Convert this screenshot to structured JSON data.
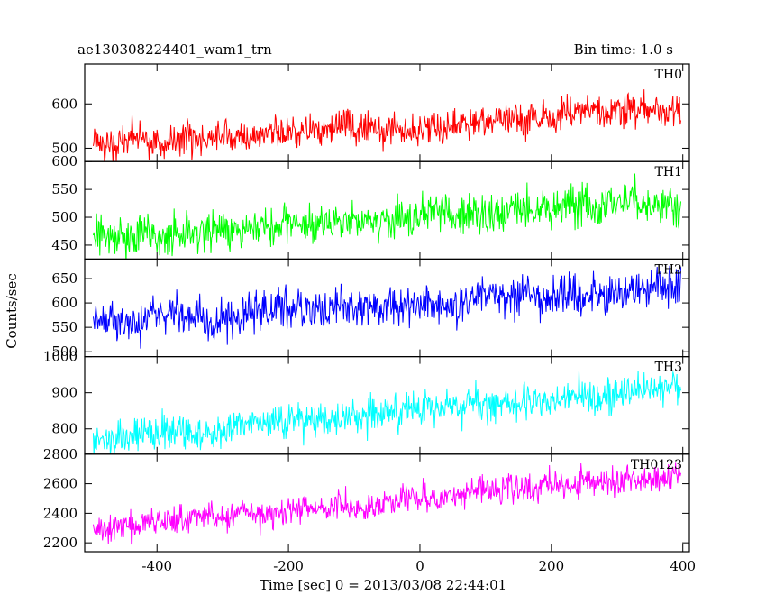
{
  "header": {
    "title": "ae130308224401_wam1_trn",
    "bin_time": "Bin time: 1.0 s"
  },
  "axes": {
    "xlabel": "Time [sec] 0 = 2013/03/08 22:44:01",
    "ylabel": "Counts/sec"
  },
  "chart_data": {
    "type": "line",
    "x_range": [
      -510,
      410
    ],
    "x_ticks": [
      -400,
      -200,
      0,
      200,
      400
    ],
    "x_start": -497,
    "x_end": 397,
    "x_step": 1,
    "grid": false,
    "panels": [
      {
        "name": "TH0",
        "color": "#ff0000",
        "ylim": [
          470,
          690
        ],
        "y_ticks": [
          500,
          600
        ],
        "start_mean": 510,
        "end_mean": 585,
        "noise": 22
      },
      {
        "name": "TH1",
        "color": "#00ff00",
        "ylim": [
          425,
          600
        ],
        "y_ticks": [
          450,
          500,
          550,
          600
        ],
        "start_mean": 462,
        "end_mean": 530,
        "noise": 20
      },
      {
        "name": "TH2",
        "color": "#0000ff",
        "ylim": [
          490,
          690
        ],
        "y_ticks": [
          500,
          550,
          600,
          650
        ],
        "start_mean": 560,
        "end_mean": 630,
        "noise": 24
      },
      {
        "name": "TH3",
        "color": "#00ffff",
        "ylim": [
          730,
          1000
        ],
        "y_ticks": [
          800,
          900,
          1000
        ],
        "start_mean": 770,
        "end_mean": 915,
        "noise": 28
      },
      {
        "name": "TH0123",
        "color": "#ff00ff",
        "ylim": [
          2140,
          2800
        ],
        "y_ticks": [
          2200,
          2400,
          2600,
          2800
        ],
        "start_mean": 2290,
        "end_mean": 2670,
        "noise": 55
      }
    ]
  }
}
